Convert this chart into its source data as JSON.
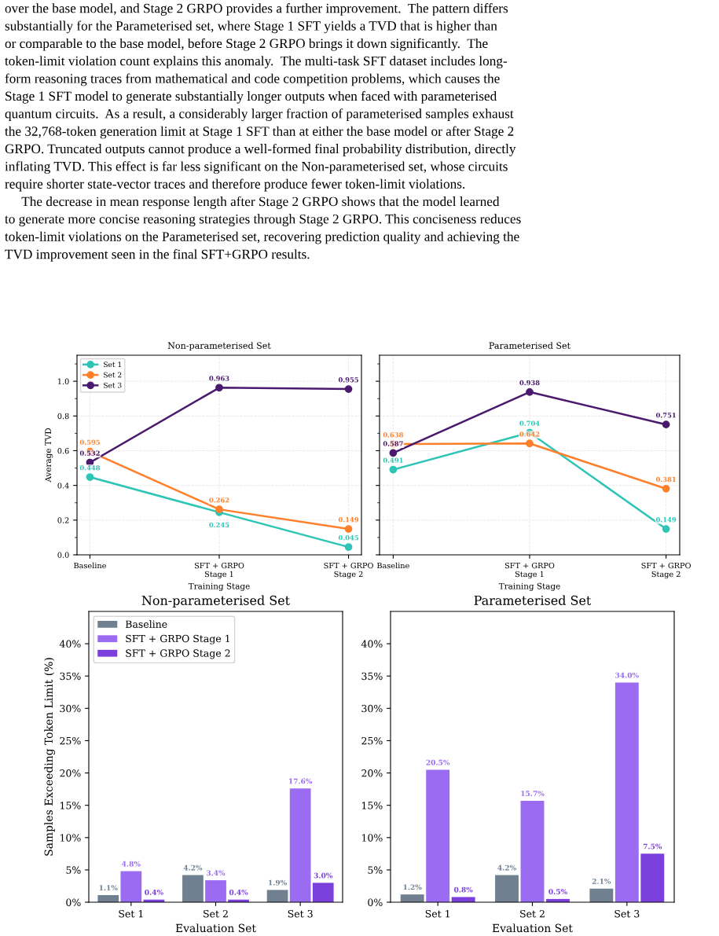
{
  "chart_data": [
    {
      "type": "other",
      "annotations": [
        "over the base model, and Stage 2 GRPO provides a further improvement.  The pattern differs",
        "substantially for the Parameterised set, where Stage 1 SFT yields a TVD that is higher than",
        "or comparable to the base model, before Stage 2 GRPO brings it down significantly.  The",
        "token-limit violation count explains this anomaly.  The multi-task SFT dataset includes long-",
        "form reasoning traces from mathematical and code competition problems, which causes the",
        "Stage 1 SFT model to generate substantially longer outputs when faced with parameterised",
        "quantum circuits.  As a result, a considerably larger fraction of parameterised samples exhaust",
        "the 32,768-token generation limit at Stage 1 SFT than at either the base model or after Stage 2",
        "GRPO. Truncated outputs cannot produce a well-formed final probability distribution, directly",
        "inflating TVD. This effect is far less significant on the Non-parameterised set, whose circuits",
        "require shorter state-vector traces and therefore produce fewer token-limit violations.",
        "     The decrease in mean response length after Stage 2 GRPO shows that the model learned",
        "to generate more concise reasoning strategies through Stage 2 GRPO. This conciseness reduces",
        "token-limit violations on the Parameterised set, recovering prediction quality and achieving the",
        "TVD improvement seen in the final SFT+GRPO results."
      ]
    },
    {
      "type": "line",
      "title": "Non-parameterised Set",
      "xlabel": "Training Stage",
      "ylabel": "Average TVD",
      "categories": [
        "Baseline",
        "SFT + GRPO\nStage 1",
        "SFT + GRPO\nStage 2"
      ],
      "series": [
        {
          "name": "Set 1",
          "color": "#2ec4b6",
          "values": [
            0.448,
            0.245,
            0.045
          ]
        },
        {
          "name": "Set 2",
          "color": "#ff7f2a",
          "values": [
            0.595,
            0.262,
            0.149
          ]
        },
        {
          "name": "Set 3",
          "color": "#4b1a6e",
          "values": [
            0.532,
            0.963,
            0.955
          ]
        }
      ],
      "ylim": [
        0,
        1.15
      ],
      "yticks": [
        {
          "value": 0,
          "label": "0.0"
        },
        0.2,
        0.4,
        0.6,
        0.8,
        {
          "value": 1,
          "label": "1.0"
        }
      ],
      "grid": true,
      "legend": "top left",
      "marker": "circle",
      "data_labels": true
    },
    {
      "type": "line",
      "title": "Parameterised Set",
      "xlabel": "Training Stage",
      "categories": [
        "Baseline",
        "SFT + GRPO\nStage 1",
        "SFT + GRPO\nStage 2"
      ],
      "series": [
        {
          "color": "#2ec4b6",
          "values": [
            0.491,
            0.704,
            0.149
          ]
        },
        {
          "color": "#ff7f2a",
          "values": [
            0.638,
            0.642,
            0.381
          ]
        },
        {
          "color": "#4b1a6e",
          "values": [
            0.587,
            0.938,
            0.751
          ]
        }
      ],
      "ylim": [
        0,
        1.15
      ],
      "yticks": [
        0,
        0.2,
        0.4,
        0.6,
        0.8,
        1
      ],
      "tick_labels": "x",
      "grid": true,
      "marker": "circle",
      "data_labels": true
    },
    {
      "type": "bar",
      "title": "Non-parameterised Set",
      "xlabel": "Evaluation Set",
      "ylabel": "Samples Exceeding Token Limit (%)",
      "categories": [
        "Set 1",
        "Set 2",
        "Set 3"
      ],
      "series": [
        {
          "name": "Baseline",
          "color": "#708090",
          "values": [
            1.1,
            4.2,
            1.9
          ],
          "value_labels": [
            "1.1%",
            "4.2%",
            "1.9%"
          ]
        },
        {
          "name": "SFT + GRPO Stage 1",
          "color": "#9b6cf2",
          "values": [
            4.8,
            3.4,
            17.6
          ],
          "value_labels": [
            "4.8%",
            "3.4%",
            "17.6%"
          ]
        },
        {
          "name": "SFT + GRPO Stage 2",
          "color": "#7b3fdc",
          "values": [
            0.4,
            0.4,
            3.0
          ],
          "value_labels": [
            "0.4%",
            "0.4%",
            "3.0%"
          ]
        }
      ],
      "ylim": [
        0,
        45
      ],
      "yticks": [
        {
          "value": 0,
          "label": "0%"
        },
        {
          "value": 5,
          "label": "5%"
        },
        {
          "value": 10,
          "label": "10%"
        },
        {
          "value": 15,
          "label": "15%"
        },
        {
          "value": 20,
          "label": "20%"
        },
        {
          "value": 25,
          "label": "25%"
        },
        {
          "value": 30,
          "label": "30%"
        },
        {
          "value": 35,
          "label": "35%"
        },
        {
          "value": 40,
          "label": "40%"
        }
      ],
      "legend": "top left"
    },
    {
      "type": "bar",
      "title": "Parameterised Set",
      "xlabel": "Evaluation Set",
      "categories": [
        "Set 1",
        "Set 2",
        "Set 3"
      ],
      "series": [
        {
          "color": "#708090",
          "values": [
            1.2,
            4.2,
            2.1
          ],
          "value_labels": [
            "1.2%",
            "4.2%",
            "2.1%"
          ]
        },
        {
          "color": "#9b6cf2",
          "values": [
            20.5,
            15.7,
            34.0
          ],
          "value_labels": [
            "20.5%",
            "15.7%",
            "34.0%"
          ]
        },
        {
          "color": "#7b3fdc",
          "values": [
            0.8,
            0.5,
            7.5
          ],
          "value_labels": [
            "0.8%",
            "0.5%",
            "7.5%"
          ]
        }
      ],
      "ylim": [
        0,
        45
      ],
      "yticks": [
        {
          "value": 0,
          "label": "0%"
        },
        {
          "value": 5,
          "label": "5%"
        },
        {
          "value": 10,
          "label": "10%"
        },
        {
          "value": 15,
          "label": "15%"
        },
        {
          "value": 20,
          "label": "20%"
        },
        {
          "value": 25,
          "label": "25%"
        },
        {
          "value": 30,
          "label": "30%"
        },
        {
          "value": 35,
          "label": "35%"
        },
        {
          "value": 40,
          "label": "40%"
        }
      ]
    }
  ]
}
